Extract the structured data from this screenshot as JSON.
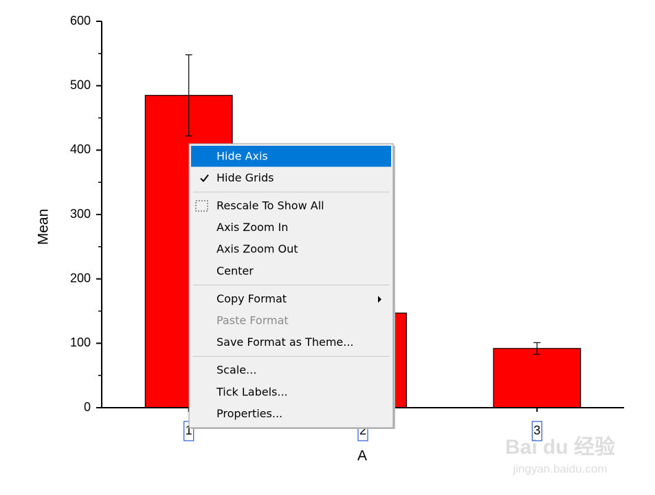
{
  "chart_data": {
    "type": "bar",
    "categories": [
      "1",
      "2",
      "3"
    ],
    "values": [
      485,
      147,
      92
    ],
    "errors": [
      63,
      null,
      9
    ],
    "color": "#ff0000",
    "x_label": "A",
    "y_label": "Mean",
    "ylim": [
      0,
      600
    ],
    "yticks": [
      0,
      100,
      200,
      300,
      400,
      500,
      600
    ]
  },
  "context_menu": {
    "groups": [
      [
        {
          "label": "Hide Axis",
          "highlighted": true
        },
        {
          "label": "Hide Grids",
          "checked": true
        }
      ],
      [
        {
          "label": "Rescale To Show All",
          "icon": true
        },
        {
          "label": "Axis Zoom In"
        },
        {
          "label": "Axis Zoom Out"
        },
        {
          "label": "Center"
        }
      ],
      [
        {
          "label": "Copy Format",
          "submenu": true
        },
        {
          "label": "Paste Format",
          "disabled": true
        },
        {
          "label": "Save Format as Theme..."
        }
      ],
      [
        {
          "label": "Scale..."
        },
        {
          "label": "Tick Labels..."
        },
        {
          "label": "Properties..."
        }
      ]
    ]
  },
  "watermark": {
    "brand": "Bai du 经验",
    "url": "jingyan.baidu.com"
  }
}
